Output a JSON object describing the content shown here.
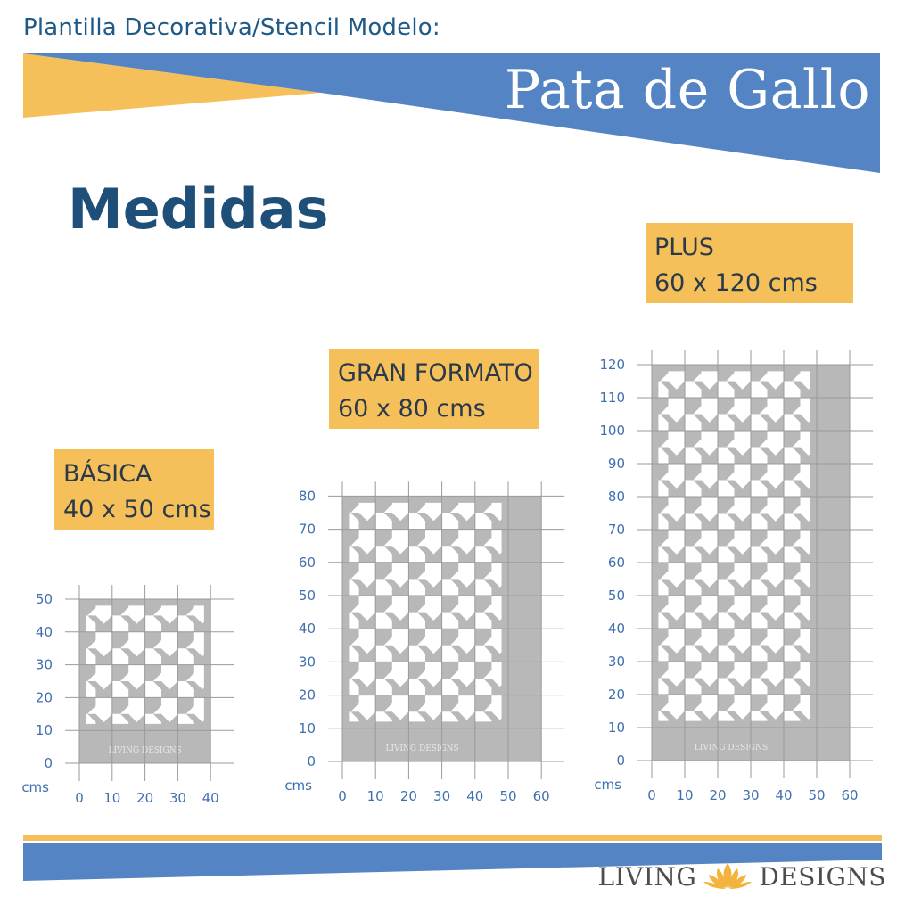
{
  "header": {
    "subtitle": "Plantilla Decorativa/Stencil Modelo:",
    "title": "Pata de Gallo"
  },
  "heading": "Medidas",
  "unit_label": "cms",
  "watermark": "LIVING DESIGNS",
  "colors": {
    "blue": "#5584c4",
    "yellow": "#f5c05a",
    "stencil_gray": "#b8b8b8",
    "grid": "#9a9a9a",
    "tick": "#3f6fb0"
  },
  "sizes": [
    {
      "name": "BÁSICA",
      "dims": "40 x 50 cms",
      "width_cm": 40,
      "height_cm": 50,
      "x_ticks": [
        0,
        10,
        20,
        30,
        40
      ],
      "y_ticks": [
        0,
        10,
        20,
        30,
        40,
        50
      ]
    },
    {
      "name": "GRAN FORMATO",
      "dims": "60 x 80 cms",
      "width_cm": 60,
      "height_cm": 80,
      "x_ticks": [
        0,
        10,
        20,
        30,
        40,
        50,
        60
      ],
      "y_ticks": [
        0,
        10,
        20,
        30,
        40,
        50,
        60,
        70,
        80
      ]
    },
    {
      "name": "PLUS",
      "dims": "60 x 120 cms",
      "width_cm": 60,
      "height_cm": 120,
      "x_ticks": [
        0,
        10,
        20,
        30,
        40,
        50,
        60
      ],
      "y_ticks": [
        0,
        10,
        20,
        30,
        40,
        50,
        60,
        70,
        80,
        90,
        100,
        110,
        120
      ]
    }
  ],
  "footer": {
    "logo_left": "LIVING",
    "logo_right": "DESIGNS",
    "logo_icon": "lotus-icon"
  }
}
